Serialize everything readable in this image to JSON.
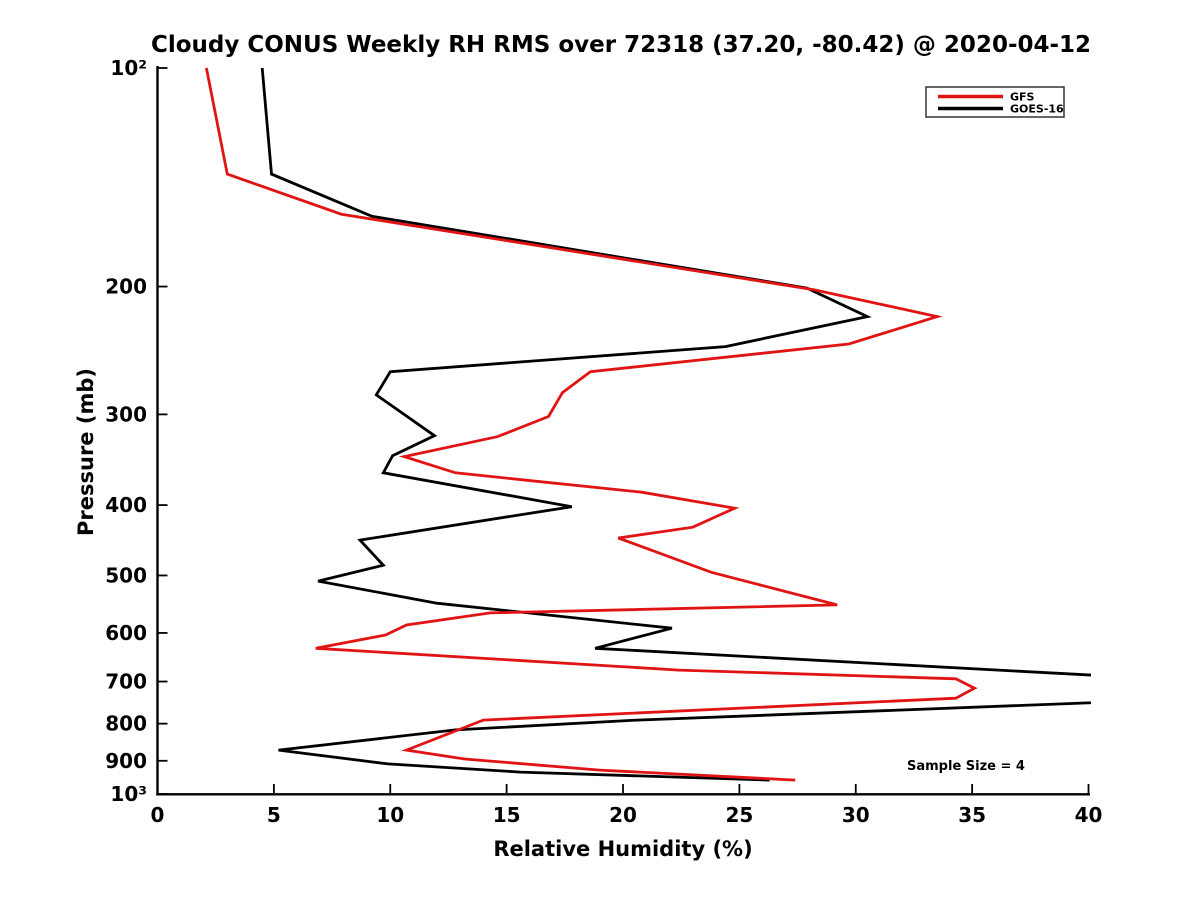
{
  "title": "Cloudy CONUS Weekly RH RMS over 72318 (37.20, -80.42) @ 2020-04-12",
  "axes": {
    "xlabel": "Relative Humidity (%)",
    "ylabel": "Pressure (mb)",
    "x_ticks": [
      0,
      5,
      10,
      15,
      20,
      25,
      30,
      35,
      40
    ],
    "y_ticks": [
      100,
      200,
      300,
      400,
      500,
      600,
      700,
      800,
      900,
      1000
    ],
    "y_tick_labels": [
      "10²",
      "200",
      "300",
      "400",
      "500",
      "600",
      "700",
      "800",
      "900",
      "10³"
    ],
    "x_range": [
      0,
      40
    ],
    "y_scale": "log",
    "y_inverted": true
  },
  "legend": {
    "entries": [
      {
        "label": "GFS",
        "color": "#e11414"
      },
      {
        "label": "GOES-16",
        "color": "#000000"
      }
    ]
  },
  "annotation": {
    "text": "Sample Size = 4"
  },
  "chart_data": {
    "type": "line",
    "title": "Cloudy CONUS Weekly RH RMS over 72318 (37.20, -80.42) @ 2020-04-12",
    "xlabel": "Relative Humidity (%)",
    "ylabel": "Pressure (mb)",
    "xlim": [
      0,
      40
    ],
    "ylim_pressure": [
      100,
      1000
    ],
    "y_axis": {
      "scale": "log",
      "inverted": true,
      "units": "mb"
    },
    "grid": false,
    "legend_position": "upper right",
    "notes": "Points are [RH_RMS_percent, pressure_mb]. GOES-16 curve exceeds the 40% axis limit between ~685 and ~749 mb (clipped spike, apex estimated).",
    "series": [
      {
        "name": "GFS",
        "color": "#e11414",
        "points": [
          [
            2.1,
            100
          ],
          [
            3.0,
            140
          ],
          [
            7.9,
            159
          ],
          [
            28.2,
            202
          ],
          [
            33.5,
            220
          ],
          [
            29.7,
            240
          ],
          [
            18.6,
            262
          ],
          [
            17.4,
            280
          ],
          [
            16.8,
            302
          ],
          [
            14.6,
            322
          ],
          [
            10.6,
            343
          ],
          [
            12.8,
            361
          ],
          [
            20.8,
            384
          ],
          [
            24.8,
            404
          ],
          [
            23.0,
            429
          ],
          [
            19.8,
            444
          ],
          [
            23.8,
            495
          ],
          [
            29.2,
            549
          ],
          [
            14.3,
            563
          ],
          [
            10.7,
            585
          ],
          [
            9.8,
            604
          ],
          [
            6.8,
            630
          ],
          [
            22.4,
            675
          ],
          [
            34.3,
            694
          ],
          [
            35.1,
            715
          ],
          [
            34.3,
            738
          ],
          [
            14.0,
            791
          ],
          [
            10.7,
            870
          ],
          [
            13.2,
            895
          ],
          [
            19.0,
            927
          ],
          [
            27.4,
            957
          ]
        ]
      },
      {
        "name": "GOES-16",
        "color": "#000000",
        "points": [
          [
            4.5,
            100
          ],
          [
            4.9,
            140
          ],
          [
            9.2,
            160
          ],
          [
            27.9,
            201
          ],
          [
            30.5,
            220
          ],
          [
            24.4,
            242
          ],
          [
            10.0,
            262
          ],
          [
            9.4,
            282
          ],
          [
            11.9,
            321
          ],
          [
            10.1,
            342
          ],
          [
            9.7,
            361
          ],
          [
            17.8,
            402
          ],
          [
            8.7,
            447
          ],
          [
            9.7,
            484
          ],
          [
            6.9,
            509
          ],
          [
            12.0,
            546
          ],
          [
            22.1,
            591
          ],
          [
            18.8,
            630
          ],
          [
            53.0,
            722
          ],
          [
            20.6,
            791
          ],
          [
            12.8,
            816
          ],
          [
            5.2,
            870
          ],
          [
            9.9,
            909
          ],
          [
            15.6,
            933
          ],
          [
            26.3,
            957
          ]
        ]
      }
    ],
    "annotations": [
      {
        "text": "Sample Size = 4",
        "x_rh": 34.7,
        "pressure_mb": 915
      }
    ]
  }
}
